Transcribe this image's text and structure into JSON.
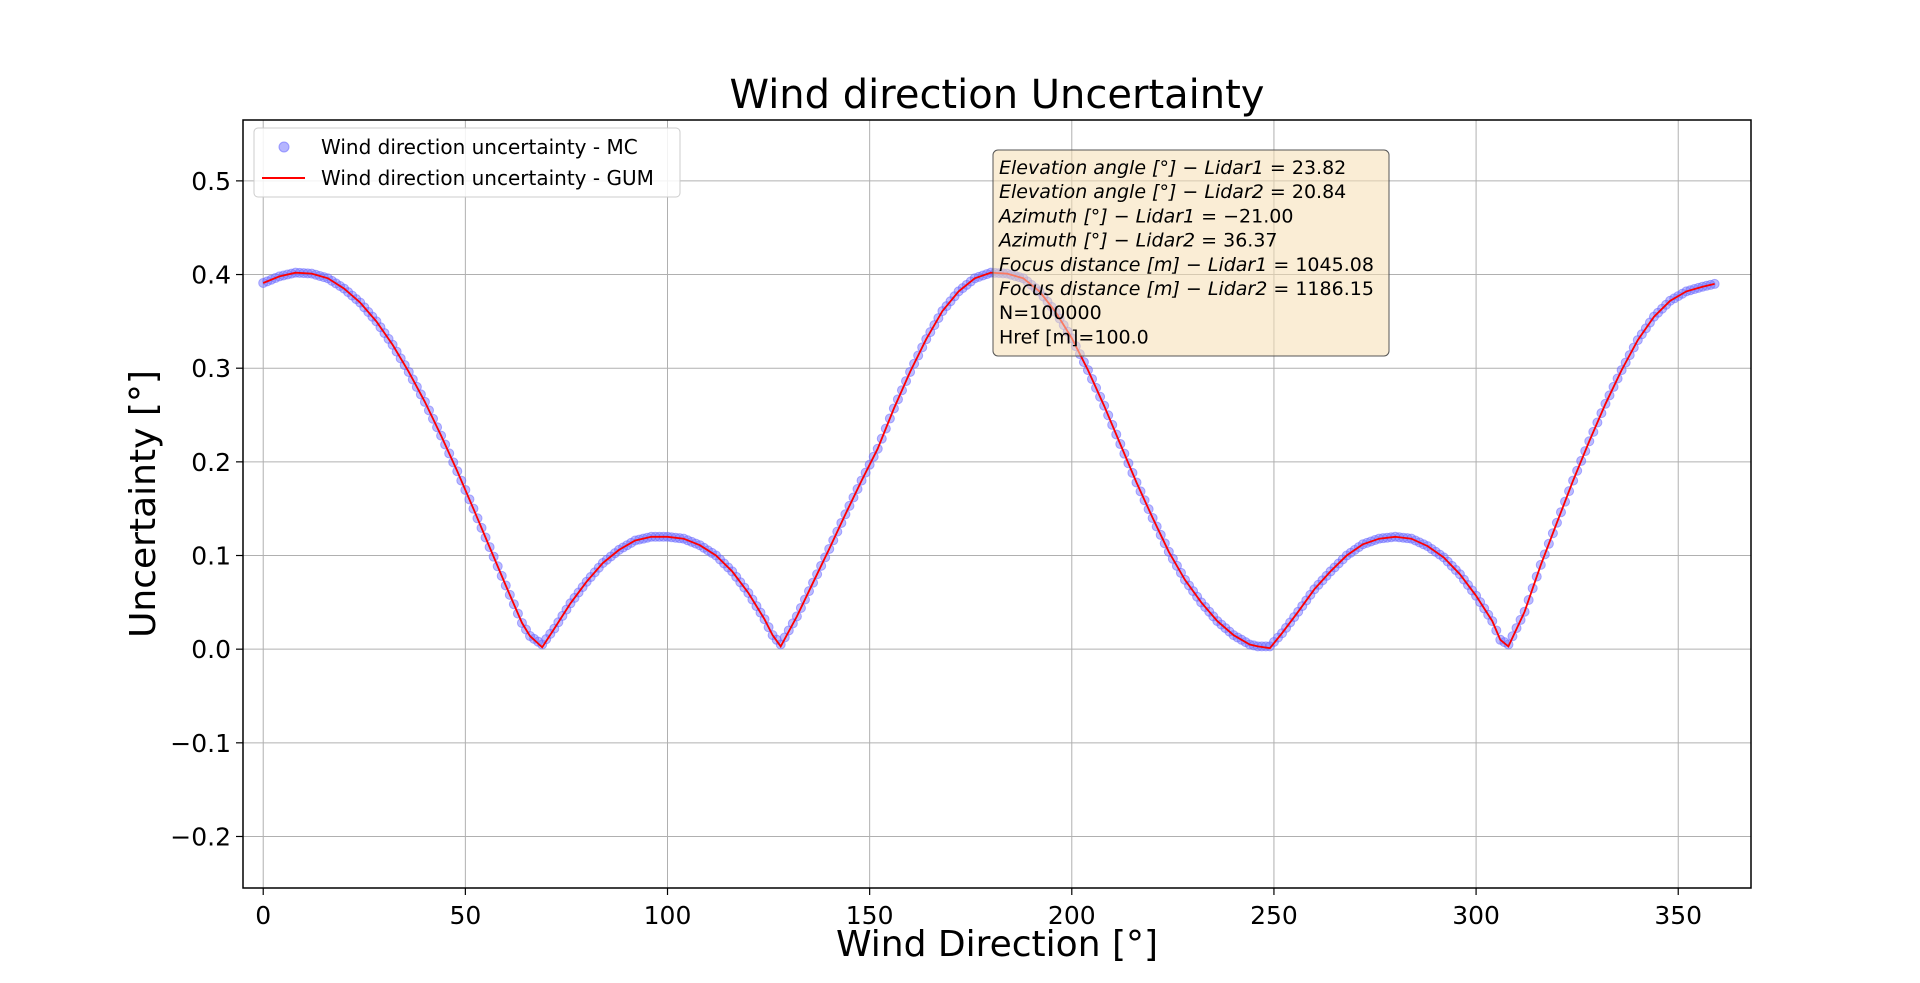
{
  "chart_data": {
    "type": "line",
    "title": "Wind direction Uncertainty",
    "xlabel": "Wind Direction [°]",
    "ylabel": "Uncertainty [°]",
    "xlim": [
      -5,
      368
    ],
    "ylim": [
      -0.255,
      0.565
    ],
    "xticks": [
      0,
      50,
      100,
      150,
      200,
      250,
      300,
      350
    ],
    "yticks": [
      -0.2,
      -0.1,
      0.0,
      0.1,
      0.2,
      0.3,
      0.4,
      0.5
    ],
    "xtick_labels": [
      "0",
      "50",
      "100",
      "150",
      "200",
      "250",
      "300",
      "350"
    ],
    "ytick_labels": [
      "−0.2",
      "−0.1",
      "0.0",
      "0.1",
      "0.2",
      "0.3",
      "0.4",
      "0.5"
    ],
    "grid": true,
    "legend": "top-left",
    "series": [
      {
        "name": "Wind direction uncertainty - MC",
        "style": "scatter",
        "color": "#6b6bff",
        "x": [
          0,
          4,
          8,
          12,
          16,
          20,
          24,
          28,
          32,
          36,
          40,
          44,
          48,
          52,
          56,
          60,
          64,
          66,
          69,
          72,
          76,
          80,
          84,
          88,
          92,
          96,
          100,
          104,
          108,
          112,
          116,
          120,
          124,
          126,
          128,
          132,
          136,
          140,
          144,
          148,
          152,
          156,
          160,
          164,
          168,
          172,
          176,
          180,
          184,
          188,
          192,
          196,
          200,
          204,
          208,
          212,
          216,
          220,
          224,
          228,
          232,
          236,
          240,
          244,
          246,
          249,
          252,
          256,
          260,
          264,
          268,
          272,
          276,
          280,
          284,
          288,
          292,
          296,
          300,
          304,
          306,
          308,
          312,
          316,
          320,
          324,
          328,
          332,
          336,
          340,
          344,
          348,
          352,
          356,
          359
        ],
        "y": [
          0.391,
          0.398,
          0.402,
          0.401,
          0.396,
          0.385,
          0.37,
          0.35,
          0.325,
          0.296,
          0.264,
          0.228,
          0.19,
          0.15,
          0.109,
          0.068,
          0.028,
          0.014,
          0.005,
          0.022,
          0.049,
          0.072,
          0.092,
          0.106,
          0.116,
          0.12,
          0.12,
          0.118,
          0.111,
          0.1,
          0.083,
          0.06,
          0.032,
          0.015,
          0.005,
          0.035,
          0.071,
          0.107,
          0.144,
          0.18,
          0.214,
          0.257,
          0.296,
          0.331,
          0.361,
          0.382,
          0.396,
          0.402,
          0.401,
          0.396,
          0.382,
          0.36,
          0.332,
          0.298,
          0.26,
          0.219,
          0.178,
          0.14,
          0.104,
          0.074,
          0.05,
          0.03,
          0.015,
          0.005,
          0.003,
          0.003,
          0.017,
          0.04,
          0.064,
          0.083,
          0.1,
          0.112,
          0.118,
          0.12,
          0.118,
          0.11,
          0.098,
          0.08,
          0.057,
          0.03,
          0.01,
          0.005,
          0.04,
          0.09,
          0.135,
          0.18,
          0.222,
          0.262,
          0.298,
          0.33,
          0.355,
          0.372,
          0.382,
          0.387,
          0.39
        ]
      },
      {
        "name": "Wind direction uncertainty - GUM",
        "style": "line",
        "color": "#ff0000",
        "x": [
          0,
          4,
          8,
          12,
          16,
          20,
          24,
          28,
          32,
          36,
          40,
          44,
          48,
          52,
          56,
          60,
          64,
          66,
          69,
          72,
          76,
          80,
          84,
          88,
          92,
          96,
          100,
          104,
          108,
          112,
          116,
          120,
          124,
          126,
          128,
          132,
          136,
          140,
          144,
          148,
          152,
          156,
          160,
          164,
          168,
          172,
          176,
          180,
          184,
          188,
          192,
          196,
          200,
          204,
          208,
          212,
          216,
          220,
          224,
          228,
          232,
          236,
          240,
          244,
          246,
          249,
          252,
          256,
          260,
          264,
          268,
          272,
          276,
          280,
          284,
          288,
          292,
          296,
          300,
          304,
          306,
          308,
          312,
          316,
          320,
          324,
          328,
          332,
          336,
          340,
          344,
          348,
          352,
          356,
          359
        ],
        "y": [
          0.391,
          0.398,
          0.402,
          0.401,
          0.396,
          0.385,
          0.37,
          0.35,
          0.325,
          0.296,
          0.264,
          0.228,
          0.19,
          0.15,
          0.109,
          0.068,
          0.028,
          0.014,
          0.002,
          0.022,
          0.049,
          0.072,
          0.092,
          0.106,
          0.116,
          0.12,
          0.12,
          0.118,
          0.111,
          0.1,
          0.083,
          0.06,
          0.032,
          0.015,
          0.003,
          0.035,
          0.071,
          0.107,
          0.144,
          0.18,
          0.214,
          0.257,
          0.296,
          0.331,
          0.361,
          0.382,
          0.396,
          0.402,
          0.401,
          0.396,
          0.382,
          0.36,
          0.332,
          0.298,
          0.26,
          0.219,
          0.178,
          0.14,
          0.104,
          0.074,
          0.05,
          0.03,
          0.015,
          0.005,
          0.003,
          0.001,
          0.017,
          0.04,
          0.064,
          0.083,
          0.1,
          0.112,
          0.118,
          0.12,
          0.118,
          0.11,
          0.098,
          0.08,
          0.057,
          0.03,
          0.01,
          0.003,
          0.04,
          0.09,
          0.135,
          0.18,
          0.222,
          0.262,
          0.298,
          0.33,
          0.355,
          0.372,
          0.382,
          0.387,
          0.39
        ]
      }
    ],
    "info_box": {
      "bg_color": "#f5deb3",
      "lines": [
        {
          "label": "Elevation angle [°] − Lidar1",
          "value": "= 23.82"
        },
        {
          "label": "Elevation angle [°] − Lidar2",
          "value": "= 20.84"
        },
        {
          "label": "Azimuth [°] − Lidar1",
          "value": "= −21.00"
        },
        {
          "label": "Azimuth [°] − Lidar2",
          "value": "= 36.37"
        },
        {
          "label": "Focus distance [m] − Lidar1",
          "value": "= 1045.08"
        },
        {
          "label": "Focus distance [m] − Lidar2",
          "value": "= 1186.15"
        },
        {
          "label": "",
          "value": "N=100000"
        },
        {
          "label": "",
          "value": "Href [m]=100.0"
        }
      ]
    }
  }
}
